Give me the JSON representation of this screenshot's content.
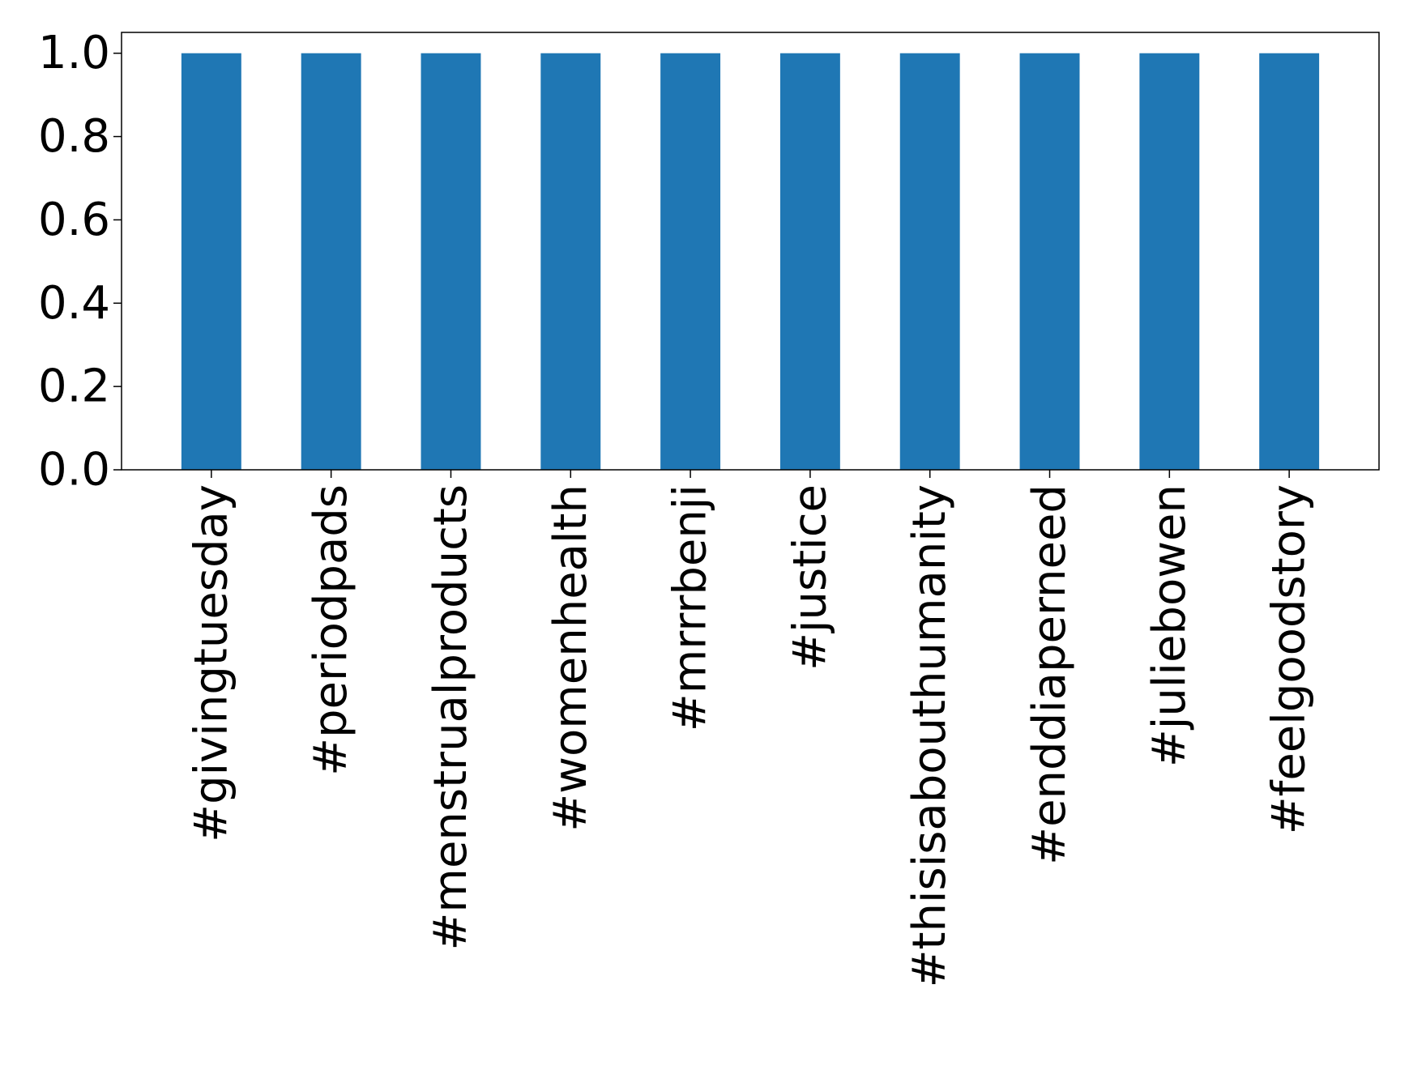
{
  "chart_data": {
    "type": "bar",
    "categories": [
      "#givingtuesday",
      "#periodpads",
      "#menstrualproducts",
      "#womenhealth",
      "#mrrrbenji",
      "#justice",
      "#thisisabouthumanity",
      "#enddiaperneed",
      "#juliebowen",
      "#feelgoodstory"
    ],
    "values": [
      1.0,
      1.0,
      1.0,
      1.0,
      1.0,
      1.0,
      1.0,
      1.0,
      1.0,
      1.0
    ],
    "yticks": [
      "0.0",
      "0.2",
      "0.4",
      "0.6",
      "0.8",
      "1.0"
    ],
    "ylim": [
      0,
      1.05
    ],
    "title": "",
    "xlabel": "",
    "ylabel": "",
    "grid": false,
    "legend": "none",
    "bar_color": "#1f77b4"
  }
}
